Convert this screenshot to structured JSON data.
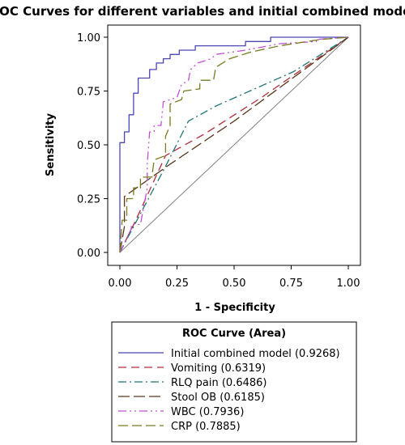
{
  "chart_data": {
    "type": "line",
    "title": "ROC Curves for different variables and initial combined model",
    "xlabel": "1 - Specificity",
    "ylabel": "Sensitivity",
    "xlim": [
      0,
      1
    ],
    "ylim": [
      0,
      1
    ],
    "x_ticks": [
      "0.00",
      "0.25",
      "0.50",
      "0.75",
      "1.00"
    ],
    "y_ticks": [
      "0.00",
      "0.25",
      "0.50",
      "0.75",
      "1.00"
    ],
    "grid": false,
    "reference_line": "diagonal",
    "legend": {
      "title": "ROC Curve (Area)",
      "placement": "bottom"
    },
    "series": [
      {
        "name": "Initial combined model",
        "area": "(0.9268)",
        "color": "#4a47b3",
        "dash": "solid",
        "points": [
          [
            0,
            0
          ],
          [
            0,
            0.51
          ],
          [
            0.02,
            0.51
          ],
          [
            0.02,
            0.56
          ],
          [
            0.04,
            0.56
          ],
          [
            0.04,
            0.64
          ],
          [
            0.06,
            0.64
          ],
          [
            0.06,
            0.74
          ],
          [
            0.08,
            0.74
          ],
          [
            0.08,
            0.81
          ],
          [
            0.13,
            0.81
          ],
          [
            0.13,
            0.85
          ],
          [
            0.16,
            0.85
          ],
          [
            0.16,
            0.88
          ],
          [
            0.19,
            0.88
          ],
          [
            0.19,
            0.9
          ],
          [
            0.22,
            0.9
          ],
          [
            0.22,
            0.92
          ],
          [
            0.26,
            0.92
          ],
          [
            0.26,
            0.94
          ],
          [
            0.33,
            0.94
          ],
          [
            0.33,
            0.96
          ],
          [
            0.55,
            0.96
          ],
          [
            0.55,
            0.98
          ],
          [
            0.66,
            0.98
          ],
          [
            0.66,
            1
          ],
          [
            1,
            1
          ]
        ]
      },
      {
        "name": "Vomiting",
        "area": "(0.6319)",
        "color": "#b22d3a",
        "dash": "10,6",
        "points": [
          [
            0,
            0
          ],
          [
            0.07,
            0.15
          ],
          [
            0.2,
            0.45
          ],
          [
            0.37,
            0.55
          ],
          [
            0.62,
            0.72
          ],
          [
            1,
            1
          ]
        ]
      },
      {
        "name": "RLQ pain",
        "area": "(0.6486)",
        "color": "#1f7575",
        "dash": "10,4,2,4",
        "points": [
          [
            0,
            0
          ],
          [
            0.1,
            0.2
          ],
          [
            0.2,
            0.4
          ],
          [
            0.3,
            0.61
          ],
          [
            0.42,
            0.68
          ],
          [
            0.76,
            0.84
          ],
          [
            1,
            1
          ]
        ]
      },
      {
        "name": "Stool OB",
        "area": "(0.6185)",
        "color": "#5a3619",
        "dash": "14,5",
        "points": [
          [
            0,
            0
          ],
          [
            0.02,
            0.12
          ],
          [
            0.02,
            0.26
          ],
          [
            0.22,
            0.41
          ],
          [
            0.5,
            0.61
          ],
          [
            1,
            1
          ]
        ]
      },
      {
        "name": "WBC",
        "area": "(0.7936)",
        "color": "#c34ed8",
        "dash": "10,4,2,4,2,4",
        "points": [
          [
            0,
            0
          ],
          [
            0.05,
            0.11
          ],
          [
            0.05,
            0.13
          ],
          [
            0.09,
            0.13
          ],
          [
            0.12,
            0.3
          ],
          [
            0.12,
            0.41
          ],
          [
            0.13,
            0.56
          ],
          [
            0.15,
            0.56
          ],
          [
            0.15,
            0.59
          ],
          [
            0.18,
            0.59
          ],
          [
            0.19,
            0.7
          ],
          [
            0.25,
            0.72
          ],
          [
            0.27,
            0.78
          ],
          [
            0.3,
            0.8
          ],
          [
            0.31,
            0.85
          ],
          [
            0.34,
            0.88
          ],
          [
            0.4,
            0.9
          ],
          [
            0.42,
            0.92
          ],
          [
            0.55,
            0.94
          ],
          [
            0.7,
            0.97
          ],
          [
            0.86,
            0.98
          ],
          [
            0.86,
            0.99
          ],
          [
            1,
            1
          ]
        ]
      },
      {
        "name": "CRP",
        "area": "(0.7885)",
        "color": "#7a7a1e",
        "dash": "12,5",
        "points": [
          [
            0,
            0
          ],
          [
            0.01,
            0.15
          ],
          [
            0.03,
            0.15
          ],
          [
            0.03,
            0.25
          ],
          [
            0.06,
            0.25
          ],
          [
            0.06,
            0.3
          ],
          [
            0.09,
            0.3
          ],
          [
            0.09,
            0.35
          ],
          [
            0.14,
            0.35
          ],
          [
            0.15,
            0.43
          ],
          [
            0.2,
            0.45
          ],
          [
            0.2,
            0.54
          ],
          [
            0.22,
            0.59
          ],
          [
            0.22,
            0.69
          ],
          [
            0.27,
            0.71
          ],
          [
            0.28,
            0.75
          ],
          [
            0.35,
            0.76
          ],
          [
            0.35,
            0.8
          ],
          [
            0.41,
            0.8
          ],
          [
            0.42,
            0.86
          ],
          [
            0.48,
            0.9
          ],
          [
            0.57,
            0.93
          ],
          [
            0.7,
            0.96
          ],
          [
            0.88,
            0.99
          ],
          [
            1,
            1
          ]
        ]
      }
    ]
  }
}
